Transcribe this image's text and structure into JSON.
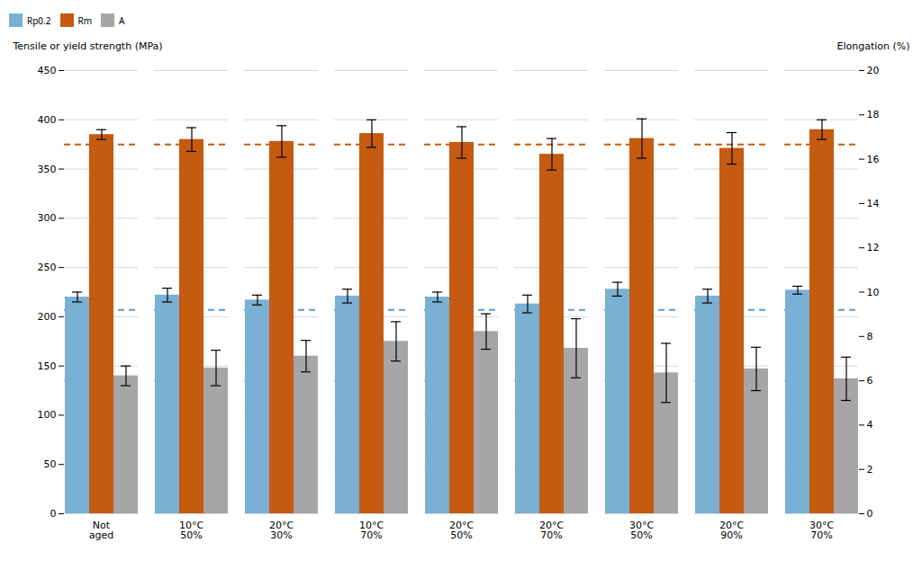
{
  "chart_data": {
    "type": "bar",
    "categories": [
      "Not\naged",
      "10°C\n50%",
      "20°C\n30%",
      "10°C\n70%",
      "20°C\n50%",
      "20°C\n70%",
      "30°C\n50%",
      "20°C\n90%",
      "30°C\n70%"
    ],
    "series": [
      {
        "name": "Rp0.2",
        "color": "#7ab0d4",
        "values": [
          220,
          222,
          217,
          221,
          220,
          213,
          228,
          221,
          227
        ],
        "errors": [
          5,
          7,
          5,
          7,
          5,
          9,
          7,
          7,
          4
        ]
      },
      {
        "name": "Rm",
        "color": "#c55a11",
        "values": [
          385,
          380,
          378,
          386,
          377,
          365,
          381,
          371,
          390
        ],
        "errors": [
          5,
          12,
          16,
          14,
          16,
          16,
          20,
          16,
          10
        ]
      },
      {
        "name": "A",
        "color": "#a6a6a6",
        "values": [
          140,
          148,
          160,
          175,
          185,
          168,
          143,
          147,
          137
        ],
        "errors": [
          10,
          18,
          16,
          20,
          18,
          30,
          30,
          22,
          22
        ]
      }
    ],
    "reference_lines": [
      {
        "value": 207,
        "color": "#5b9bd5",
        "line_style": "dashed"
      },
      {
        "value": 375,
        "color": "#c55a11",
        "line_style": "dashed"
      },
      {
        "value": 135,
        "color": "#bfbfbf",
        "line_style": "dashed"
      }
    ],
    "ylabel": "Tensile or yield strength (MPa)",
    "y2label": "Elongation (%)",
    "ylim": [
      0,
      450
    ],
    "yticks": [
      0,
      50,
      100,
      150,
      200,
      250,
      300,
      350,
      400,
      450
    ],
    "y2lim": [
      0,
      20
    ],
    "y2ticks": [
      0,
      2,
      4,
      6,
      8,
      10,
      12,
      14,
      16,
      18,
      20
    ],
    "grid": true,
    "legend": "top"
  }
}
